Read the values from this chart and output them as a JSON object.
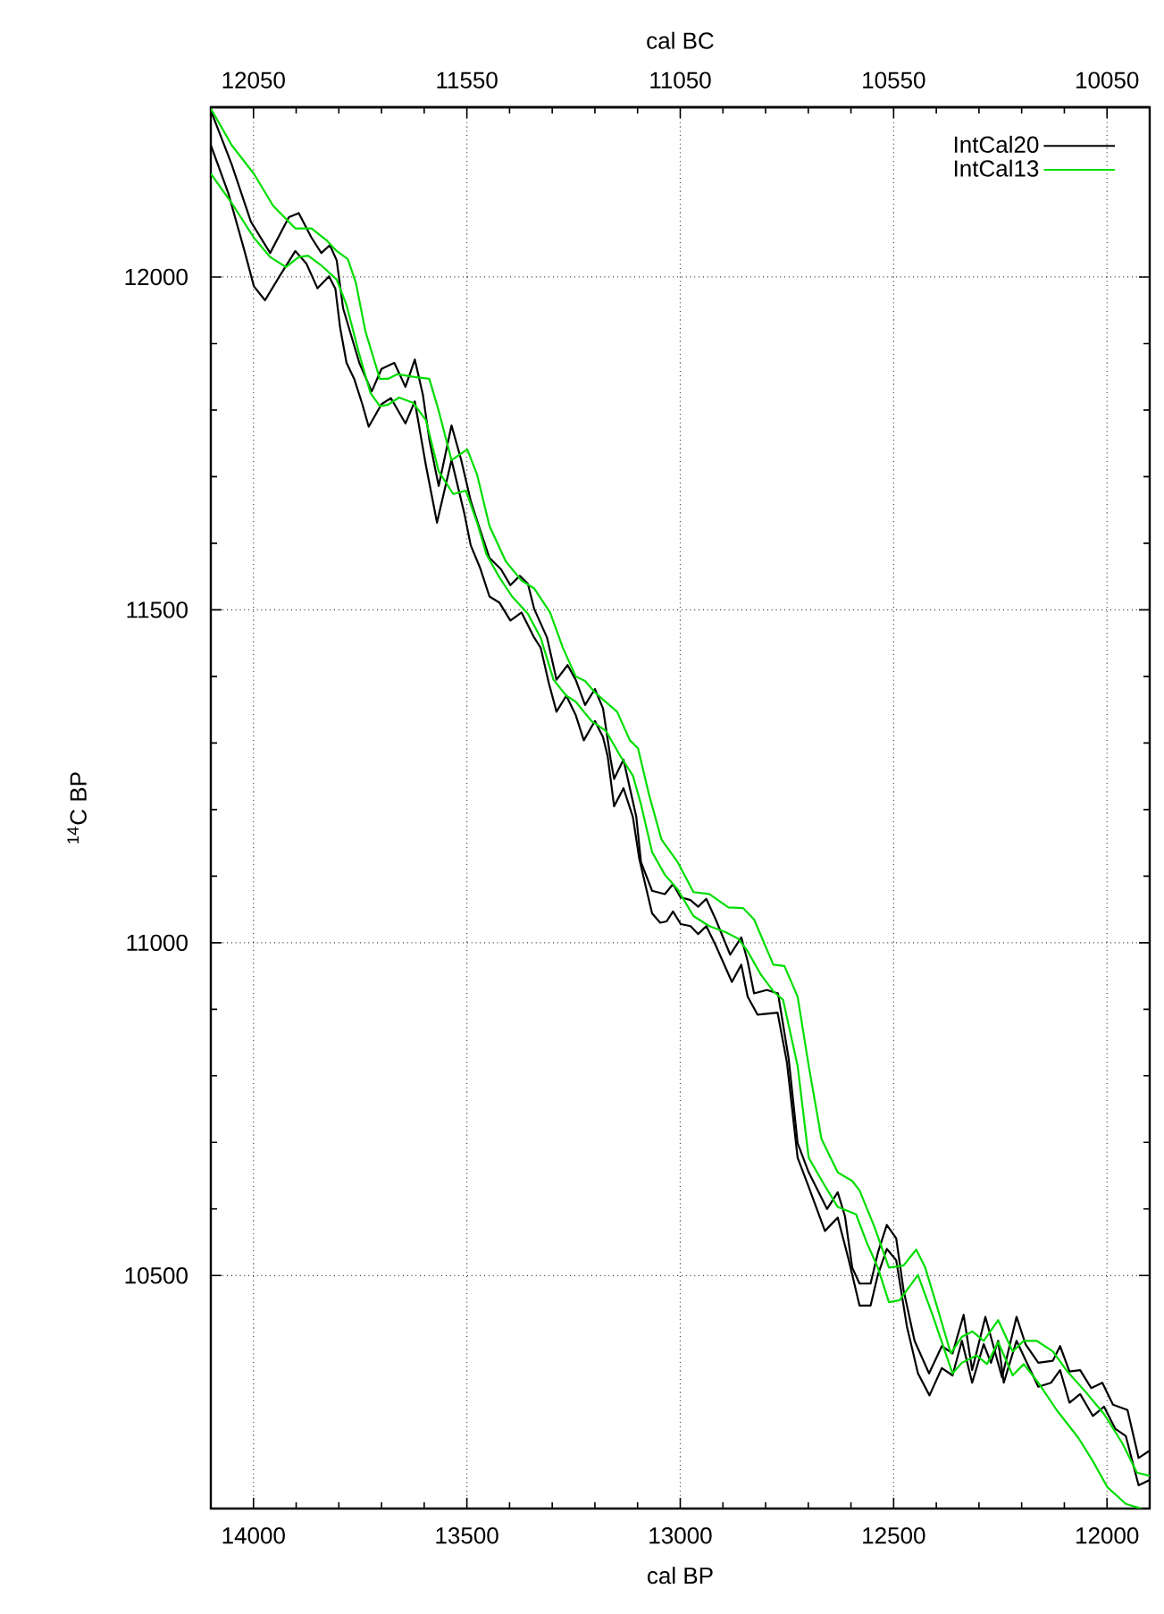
{
  "chart_data": {
    "type": "line",
    "xlabel": "cal BP",
    "ylabel": "$^{14}$C BP",
    "x2label": "cal BC",
    "xlim": [
      14100,
      11900
    ],
    "xticks": [
      14000,
      13500,
      13000,
      12500,
      12000
    ],
    "x2lim": [
      12150,
      9950
    ],
    "x2ticks": [
      12050,
      11550,
      11050,
      10550,
      10050
    ],
    "ylim": [
      10150,
      12255
    ],
    "yticks": [
      10500,
      11000,
      11500,
      12000
    ],
    "grid": true,
    "legend": "top right",
    "series": [
      {
        "name": "IntCal20",
        "color": "#000000",
        "x": [
          14100,
          14051,
          14006,
          13961,
          13917,
          13894,
          13864,
          13841,
          13821,
          13805,
          13790,
          13771,
          13752,
          13723,
          13700,
          13670,
          13644,
          13622,
          13603,
          13588,
          13566,
          13536,
          13514,
          13491,
          13473,
          13447,
          13420,
          13398,
          13376,
          13357,
          13342,
          13312,
          13290,
          13264,
          13245,
          13223,
          13200,
          13181,
          13163,
          13155,
          13133,
          13118,
          13103,
          13092,
          13066,
          13036,
          13017,
          12999,
          12976,
          12958,
          12939,
          12917,
          12883,
          12857,
          12842,
          12827,
          12797,
          12771,
          12746,
          12725,
          12699,
          12656,
          12631,
          12614,
          12597,
          12580,
          12554,
          12537,
          12516,
          12494,
          12477,
          12451,
          12417,
          12387,
          12362,
          12336,
          12316,
          12285,
          12246,
          12212,
          12191,
          12161,
          12127,
          12110,
          12088,
          12063,
          12037,
          12011,
          11986,
          11952,
          11926,
          11900
        ],
        "values": [
          12250,
          12169,
          12083,
          12036,
          12090,
          12096,
          12059,
          12036,
          12048,
          12025,
          11953,
          11912,
          11871,
          11828,
          11862,
          11871,
          11835,
          11876,
          11823,
          11756,
          11686,
          11777,
          11727,
          11664,
          11628,
          11578,
          11561,
          11537,
          11551,
          11539,
          11501,
          11458,
          11395,
          11417,
          11395,
          11357,
          11381,
          11352,
          11275,
          11246,
          11275,
          11232,
          11189,
          11121,
          11078,
          11073,
          11088,
          11068,
          11064,
          11054,
          11066,
          11035,
          10982,
          11008,
          10972,
          10924,
          10929,
          10924,
          10826,
          10699,
          10655,
          10600,
          10625,
          10589,
          10512,
          10488,
          10488,
          10534,
          10576,
          10556,
          10479,
          10402,
          10353,
          10394,
          10383,
          10441,
          10358,
          10438,
          10347,
          10438,
          10397,
          10369,
          10372,
          10394,
          10356,
          10358,
          10331,
          10339,
          10306,
          10298,
          10226,
          10237
        ]
      },
      {
        "color": "#000000",
        "x": [
          14100,
          14059,
          14021,
          13999,
          13973,
          13939,
          13902,
          13876,
          13850,
          13823,
          13808,
          13797,
          13782,
          13764,
          13745,
          13730,
          13700,
          13678,
          13644,
          13622,
          13596,
          13570,
          13536,
          13506,
          13491,
          13469,
          13447,
          13424,
          13398,
          13372,
          13342,
          13327,
          13308,
          13290,
          13267,
          13245,
          13226,
          13200,
          13181,
          13170,
          13155,
          13133,
          13111,
          13096,
          13066,
          13047,
          13032,
          13017,
          12999,
          12976,
          12958,
          12939,
          12917,
          12879,
          12857,
          12842,
          12819,
          12772,
          12750,
          12725,
          12699,
          12661,
          12631,
          12605,
          12580,
          12554,
          12537,
          12516,
          12494,
          12469,
          12443,
          12416,
          12387,
          12362,
          12340,
          12316,
          12289,
          12272,
          12255,
          12242,
          12212,
          12182,
          12161,
          12131,
          12110,
          12088,
          12063,
          12033,
          12007,
          11981,
          11956,
          11926,
          11900
        ],
        "values": [
          12198,
          12126,
          12039,
          11986,
          11965,
          12001,
          12039,
          12020,
          11983,
          12001,
          11982,
          11924,
          11871,
          11847,
          11809,
          11775,
          11809,
          11818,
          11780,
          11813,
          11717,
          11631,
          11725,
          11645,
          11597,
          11563,
          11520,
          11511,
          11484,
          11496,
          11458,
          11443,
          11390,
          11347,
          11371,
          11342,
          11304,
          11333,
          11309,
          11280,
          11205,
          11232,
          11189,
          11126,
          11044,
          11030,
          11032,
          11047,
          11028,
          11025,
          11013,
          11025,
          10996,
          10941,
          10967,
          10919,
          10892,
          10895,
          10820,
          10677,
          10633,
          10567,
          10587,
          10523,
          10455,
          10455,
          10501,
          10540,
          10523,
          10424,
          10353,
          10320,
          10361,
          10350,
          10402,
          10339,
          10397,
          10369,
          10402,
          10339,
          10402,
          10361,
          10333,
          10339,
          10358,
          10309,
          10322,
          10289,
          10303,
          10270,
          10259,
          10185,
          10193
        ]
      },
      {
        "name": "IntCal13",
        "color": "#00dd00",
        "x": [
          14100,
          14051,
          13999,
          13954,
          13902,
          13864,
          13827,
          13805,
          13779,
          13760,
          13738,
          13704,
          13685,
          13663,
          13626,
          13588,
          13566,
          13536,
          13499,
          13476,
          13447,
          13409,
          13372,
          13342,
          13305,
          13275,
          13245,
          13223,
          13200,
          13170,
          13148,
          13118,
          13099,
          13073,
          13044,
          13006,
          12969,
          12932,
          12887,
          12853,
          12827,
          12782,
          12756,
          12725,
          12699,
          12669,
          12631,
          12597,
          12580,
          12545,
          12511,
          12477,
          12447,
          12426,
          12400,
          12366,
          12340,
          12315,
          12289,
          12255,
          12221,
          12195,
          12165,
          12127,
          12093,
          12050,
          12007,
          11964,
          11930,
          11900
        ],
        "values": [
          12253,
          12198,
          12155,
          12107,
          12073,
          12073,
          12054,
          12039,
          12027,
          11991,
          11919,
          11847,
          11847,
          11854,
          11850,
          11847,
          11799,
          11725,
          11741,
          11703,
          11626,
          11573,
          11544,
          11532,
          11496,
          11443,
          11400,
          11393,
          11376,
          11359,
          11347,
          11304,
          11292,
          11222,
          11155,
          11121,
          11076,
          11073,
          11053,
          11052,
          11035,
          10967,
          10965,
          10919,
          10815,
          10705,
          10655,
          10642,
          10628,
          10573,
          10512,
          10515,
          10539,
          10512,
          10457,
          10383,
          10408,
          10416,
          10402,
          10433,
          10386,
          10402,
          10402,
          10386,
          10356,
          10325,
          10292,
          10248,
          10204,
          10199
        ]
      },
      {
        "color": "#00dd00",
        "x": [
          14100,
          14051,
          13999,
          13961,
          13924,
          13894,
          13872,
          13842,
          13805,
          13782,
          13753,
          13726,
          13704,
          13685,
          13659,
          13626,
          13596,
          13566,
          13532,
          13502,
          13476,
          13454,
          13424,
          13394,
          13357,
          13327,
          13297,
          13267,
          13245,
          13208,
          13174,
          13140,
          13111,
          13092,
          13066,
          13036,
          13006,
          12969,
          12932,
          12894,
          12864,
          12842,
          12812,
          12782,
          12759,
          12725,
          12699,
          12665,
          12631,
          12588,
          12562,
          12537,
          12511,
          12486,
          12443,
          12409,
          12362,
          12340,
          12306,
          12281,
          12255,
          12221,
          12195,
          12161,
          12118,
          12067,
          12033,
          11999,
          11956,
          11920
        ],
        "values": [
          12155,
          12111,
          12059,
          12030,
          12015,
          12030,
          12032,
          12018,
          11996,
          11958,
          11886,
          11826,
          11806,
          11808,
          11819,
          11811,
          11785,
          11708,
          11674,
          11679,
          11631,
          11583,
          11549,
          11520,
          11494,
          11458,
          11395,
          11371,
          11362,
          11333,
          11318,
          11280,
          11251,
          11208,
          11136,
          11102,
          11080,
          11040,
          11025,
          11016,
          11006,
          10987,
          10953,
          10927,
          10914,
          10815,
          10677,
          10639,
          10603,
          10592,
          10548,
          10512,
          10460,
          10463,
          10501,
          10441,
          10353,
          10369,
          10380,
          10367,
          10400,
          10350,
          10367,
          10339,
          10298,
          10256,
          10221,
          10182,
          10157,
          10150
        ]
      }
    ]
  }
}
